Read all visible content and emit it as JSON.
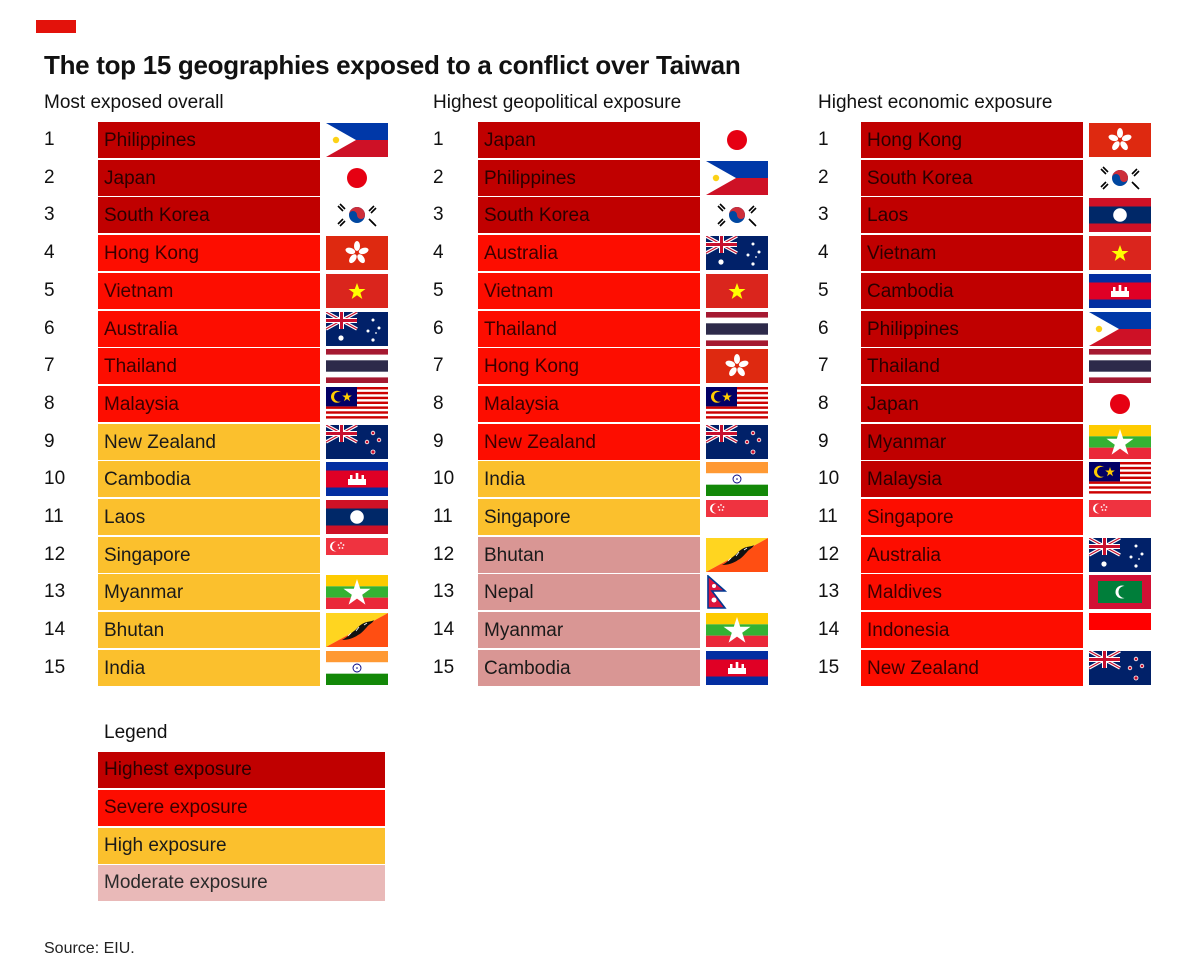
{
  "title": "The top 15 geographies exposed to a conflict over Taiwan",
  "source": "Source: EIU.",
  "colors": {
    "highest": "#c00000",
    "severe": "#fd0d00",
    "high": "#fbc02d",
    "moderate": "#d99694",
    "accent": "#e3120b"
  },
  "legend": {
    "title": "Legend",
    "items": [
      {
        "level": "highest",
        "label": "Highest exposure"
      },
      {
        "level": "severe",
        "label": "Severe exposure"
      },
      {
        "level": "high",
        "label": "High exposure"
      },
      {
        "level": "moderate",
        "label": "Moderate exposure"
      }
    ]
  },
  "chart_data": [
    {
      "type": "table",
      "title": "Most exposed overall",
      "rows": [
        {
          "rank": "1",
          "name": "Philippines",
          "level": "highest",
          "flag": "philippines-flag-icon"
        },
        {
          "rank": "2",
          "name": "Japan",
          "level": "highest",
          "flag": "japan-flag-icon"
        },
        {
          "rank": "3",
          "name": "South Korea",
          "level": "highest",
          "flag": "south-korea-flag-icon"
        },
        {
          "rank": "4",
          "name": "Hong Kong",
          "level": "severe",
          "flag": "hong-kong-flag-icon"
        },
        {
          "rank": "5",
          "name": "Vietnam",
          "level": "severe",
          "flag": "vietnam-flag-icon"
        },
        {
          "rank": "6",
          "name": "Australia",
          "level": "severe",
          "flag": "australia-flag-icon"
        },
        {
          "rank": "7",
          "name": "Thailand",
          "level": "severe",
          "flag": "thailand-flag-icon"
        },
        {
          "rank": "8",
          "name": "Malaysia",
          "level": "severe",
          "flag": "malaysia-flag-icon"
        },
        {
          "rank": "9",
          "name": "New Zealand",
          "level": "high",
          "flag": "new-zealand-flag-icon"
        },
        {
          "rank": "10",
          "name": "Cambodia",
          "level": "high",
          "flag": "cambodia-flag-icon"
        },
        {
          "rank": "11",
          "name": "Laos",
          "level": "high",
          "flag": "laos-flag-icon"
        },
        {
          "rank": "12",
          "name": "Singapore",
          "level": "high",
          "flag": "singapore-flag-icon"
        },
        {
          "rank": "13",
          "name": "Myanmar",
          "level": "high",
          "flag": "myanmar-flag-icon"
        },
        {
          "rank": "14",
          "name": "Bhutan",
          "level": "high",
          "flag": "bhutan-flag-icon"
        },
        {
          "rank": "15",
          "name": "India",
          "level": "high",
          "flag": "india-flag-icon"
        }
      ]
    },
    {
      "type": "table",
      "title": "Highest geopolitical exposure",
      "rows": [
        {
          "rank": "1",
          "name": "Japan",
          "level": "highest",
          "flag": "japan-flag-icon"
        },
        {
          "rank": "2",
          "name": "Philippines",
          "level": "highest",
          "flag": "philippines-flag-icon"
        },
        {
          "rank": "3",
          "name": "South Korea",
          "level": "highest",
          "flag": "south-korea-flag-icon"
        },
        {
          "rank": "4",
          "name": "Australia",
          "level": "severe",
          "flag": "australia-flag-icon"
        },
        {
          "rank": "5",
          "name": "Vietnam",
          "level": "severe",
          "flag": "vietnam-flag-icon"
        },
        {
          "rank": "6",
          "name": "Thailand",
          "level": "severe",
          "flag": "thailand-flag-icon"
        },
        {
          "rank": "7",
          "name": "Hong Kong",
          "level": "severe",
          "flag": "hong-kong-flag-icon"
        },
        {
          "rank": "8",
          "name": "Malaysia",
          "level": "severe",
          "flag": "malaysia-flag-icon"
        },
        {
          "rank": "9",
          "name": "New Zealand",
          "level": "severe",
          "flag": "new-zealand-flag-icon"
        },
        {
          "rank": "10",
          "name": "India",
          "level": "high",
          "flag": "india-flag-icon"
        },
        {
          "rank": "11",
          "name": "Singapore",
          "level": "high",
          "flag": "singapore-flag-icon"
        },
        {
          "rank": "12",
          "name": "Bhutan",
          "level": "moderate",
          "flag": "bhutan-flag-icon"
        },
        {
          "rank": "13",
          "name": "Nepal",
          "level": "moderate",
          "flag": "nepal-flag-icon"
        },
        {
          "rank": "14",
          "name": "Myanmar",
          "level": "moderate",
          "flag": "myanmar-flag-icon"
        },
        {
          "rank": "15",
          "name": "Cambodia",
          "level": "moderate",
          "flag": "cambodia-flag-icon"
        }
      ]
    },
    {
      "type": "table",
      "title": "Highest economic exposure",
      "rows": [
        {
          "rank": "1",
          "name": "Hong Kong",
          "level": "highest",
          "flag": "hong-kong-flag-icon"
        },
        {
          "rank": "2",
          "name": "South Korea",
          "level": "highest",
          "flag": "south-korea-flag-icon"
        },
        {
          "rank": "3",
          "name": "Laos",
          "level": "highest",
          "flag": "laos-flag-icon"
        },
        {
          "rank": "4",
          "name": "Vietnam",
          "level": "highest",
          "flag": "vietnam-flag-icon"
        },
        {
          "rank": "5",
          "name": "Cambodia",
          "level": "highest",
          "flag": "cambodia-flag-icon"
        },
        {
          "rank": "6",
          "name": "Philippines",
          "level": "highest",
          "flag": "philippines-flag-icon"
        },
        {
          "rank": "7",
          "name": "Thailand",
          "level": "highest",
          "flag": "thailand-flag-icon"
        },
        {
          "rank": "8",
          "name": "Japan",
          "level": "highest",
          "flag": "japan-flag-icon"
        },
        {
          "rank": "9",
          "name": "Myanmar",
          "level": "highest",
          "flag": "myanmar-flag-icon"
        },
        {
          "rank": "10",
          "name": "Malaysia",
          "level": "highest",
          "flag": "malaysia-flag-icon"
        },
        {
          "rank": "11",
          "name": "Singapore",
          "level": "severe",
          "flag": "singapore-flag-icon"
        },
        {
          "rank": "12",
          "name": "Australia",
          "level": "severe",
          "flag": "australia-flag-icon"
        },
        {
          "rank": "13",
          "name": "Maldives",
          "level": "severe",
          "flag": "maldives-flag-icon"
        },
        {
          "rank": "14",
          "name": "Indonesia",
          "level": "severe",
          "flag": "indonesia-flag-icon"
        },
        {
          "rank": "15",
          "name": "New Zealand",
          "level": "severe",
          "flag": "new-zealand-flag-icon"
        }
      ]
    }
  ]
}
